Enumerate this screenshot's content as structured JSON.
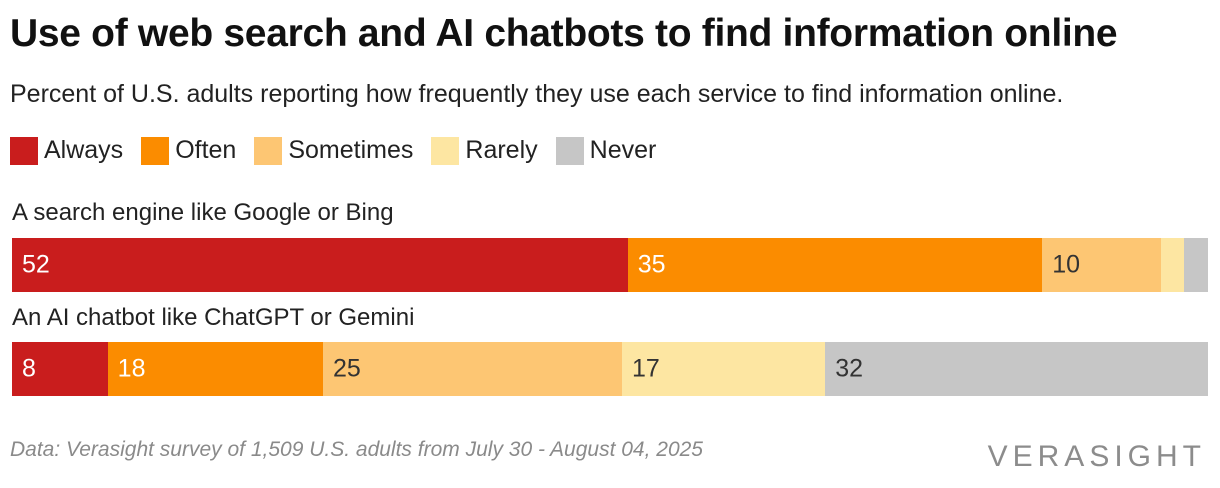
{
  "chart_data": {
    "type": "bar",
    "title": "Use of web search and AI chatbots to find information online",
    "subtitle": "Percent of U.S. adults reporting how frequently they use each service to find information online.",
    "legend": [
      {
        "name": "Always",
        "color": "#c91d1d"
      },
      {
        "name": "Often",
        "color": "#fb8c00"
      },
      {
        "name": "Sometimes",
        "color": "#fdc673"
      },
      {
        "name": "Rarely",
        "color": "#fde6a2"
      },
      {
        "name": "Never",
        "color": "#c6c6c6"
      }
    ],
    "categories": [
      "A search engine like Google or Bing",
      "An AI chatbot like ChatGPT or Gemini"
    ],
    "series": [
      {
        "name": "Always",
        "values": [
          52,
          8
        ],
        "labels": [
          "52",
          "8"
        ]
      },
      {
        "name": "Often",
        "values": [
          35,
          18
        ],
        "labels": [
          "35",
          "18"
        ]
      },
      {
        "name": "Sometimes",
        "values": [
          10,
          25
        ],
        "labels": [
          "10",
          "25"
        ]
      },
      {
        "name": "Rarely",
        "values": [
          2,
          17
        ],
        "labels": [
          "",
          "17"
        ]
      },
      {
        "name": "Never",
        "values": [
          2,
          32
        ],
        "labels": [
          "",
          "32"
        ]
      }
    ],
    "stacked": true,
    "orientation": "horizontal",
    "xlim": [
      0,
      100
    ],
    "grid": false,
    "legend_position": "top-left",
    "source": "Data: Verasight survey of 1,509 U.S. adults from July 30 - August 04, 2025",
    "brand": "VERASIGHT"
  }
}
